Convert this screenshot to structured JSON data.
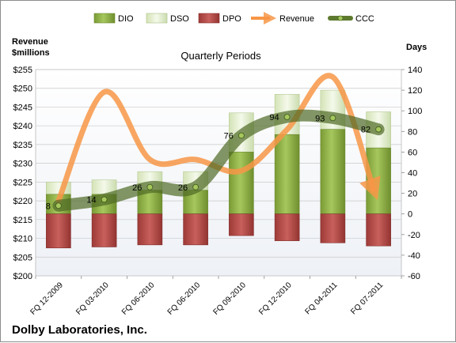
{
  "chart_data": {
    "type": "bar",
    "title": "Quarterly Periods",
    "company": "Dolby Laboratories, Inc.",
    "left_axis": {
      "label_line1": "Revenue",
      "label_line2": "$millions",
      "range": [
        200,
        255
      ],
      "step": 5,
      "prefix": "$"
    },
    "right_axis": {
      "label": "Days",
      "range": [
        -60,
        140
      ],
      "step": 20
    },
    "categories": [
      "FQ 12-2009",
      "FQ 03-2010",
      "FQ 06-2010",
      "FQ 06-2010",
      "FQ 09-2010",
      "FQ 12-2010",
      "FQ 04-2011",
      "FQ 07-2011"
    ],
    "series": [
      {
        "name": "DIO",
        "axis": "right",
        "kind": "stacked-bar",
        "color": "#8fb14a",
        "values": [
          19,
          19,
          23,
          23,
          60,
          77,
          82,
          64
        ]
      },
      {
        "name": "DSO",
        "axis": "right",
        "kind": "stacked-bar",
        "color": "#e2edcf",
        "values": [
          12,
          14,
          18,
          18,
          38,
          39,
          38,
          35
        ]
      },
      {
        "name": "DPO",
        "axis": "right",
        "kind": "negative-bar",
        "color": "#b84a47",
        "values": [
          -33,
          -32,
          -30,
          -30,
          -21,
          -26,
          -28,
          -31
        ]
      },
      {
        "name": "Revenue",
        "axis": "left",
        "kind": "line",
        "color": "#f79646",
        "values": [
          220,
          249,
          231,
          231,
          228,
          239,
          253,
          220
        ]
      },
      {
        "name": "CCC",
        "axis": "right",
        "kind": "line",
        "color": "#5e7a2f",
        "values": [
          8,
          14,
          26,
          26,
          76,
          94,
          93,
          82
        ]
      }
    ],
    "legend": {
      "position": "top"
    },
    "grid": true
  }
}
